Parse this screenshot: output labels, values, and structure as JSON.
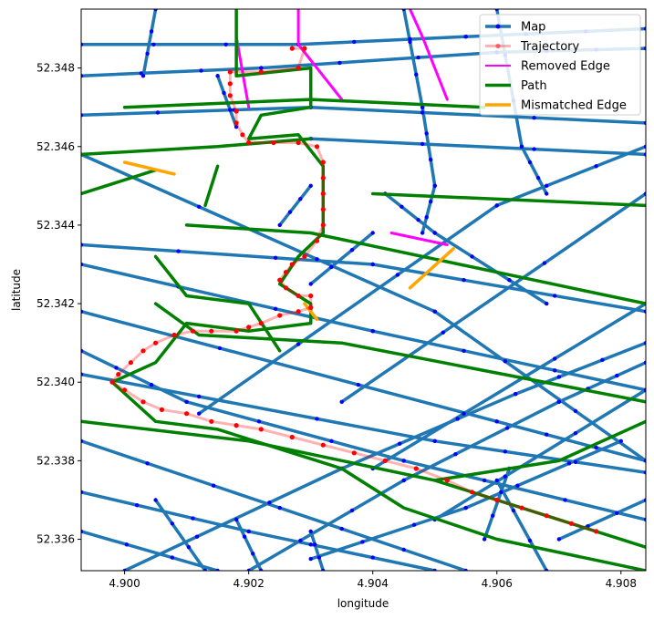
{
  "chart_data": {
    "type": "line",
    "xlabel": "longitude",
    "ylabel": "latitude",
    "xlim": [
      4.8993,
      4.9084
    ],
    "ylim": [
      52.3352,
      52.3495
    ],
    "x_ticks": [
      "4.900",
      "4.902",
      "4.904",
      "4.906",
      "4.908"
    ],
    "x_tick_values": [
      4.9,
      4.902,
      4.904,
      4.906,
      4.908
    ],
    "y_ticks": [
      "52.336",
      "52.338",
      "52.340",
      "52.342",
      "52.344",
      "52.346",
      "52.348"
    ],
    "y_tick_values": [
      52.336,
      52.338,
      52.34,
      52.342,
      52.344,
      52.346,
      52.348
    ],
    "grid": false,
    "legend_position": "top-right",
    "colors": {
      "map": "#1f77b4",
      "map_nodes": "#0000ff",
      "trajectory": "#ff0000",
      "removed": "#ff00ff",
      "path": "#008000",
      "mismatched": "#ffa500"
    },
    "legend": [
      {
        "label": "Map",
        "style": "map"
      },
      {
        "label": "Trajectory",
        "style": "trajectory"
      },
      {
        "label": "Removed Edge",
        "style": "removed"
      },
      {
        "label": "Path",
        "style": "path"
      },
      {
        "label": "Mismatched Edge",
        "style": "mismatched"
      }
    ],
    "map_edges": [
      [
        [
          4.8993,
          52.3486
        ],
        [
          4.9028,
          52.3486
        ],
        [
          4.9055,
          52.3488
        ],
        [
          4.9084,
          52.349
        ]
      ],
      [
        [
          4.8993,
          52.3478
        ],
        [
          4.9022,
          52.348
        ],
        [
          4.906,
          52.3484
        ],
        [
          4.9084,
          52.3485
        ]
      ],
      [
        [
          4.8993,
          52.3468
        ],
        [
          4.903,
          52.347
        ],
        [
          4.9084,
          52.3466
        ]
      ],
      [
        [
          4.903,
          52.3462
        ],
        [
          4.9084,
          52.3458
        ]
      ],
      [
        [
          4.8993,
          52.3435
        ],
        [
          4.904,
          52.343
        ],
        [
          4.9084,
          52.3418
        ]
      ],
      [
        [
          4.8993,
          52.3458
        ],
        [
          4.905,
          52.3418
        ],
        [
          4.9084,
          52.338
        ]
      ],
      [
        [
          4.8993,
          52.3408
        ],
        [
          4.901,
          52.3395
        ],
        [
          4.9045,
          52.338
        ],
        [
          4.9084,
          52.3365
        ]
      ],
      [
        [
          4.8993,
          52.3385
        ],
        [
          4.9025,
          52.3368
        ],
        [
          4.9055,
          52.3352
        ]
      ],
      [
        [
          4.8993,
          52.3372
        ],
        [
          4.902,
          52.3362
        ],
        [
          4.905,
          52.3352
        ]
      ],
      [
        [
          4.8993,
          52.3362
        ],
        [
          4.9015,
          52.3352
        ]
      ],
      [
        [
          4.8993,
          52.343
        ],
        [
          4.904,
          52.3413
        ],
        [
          4.9084,
          52.3398
        ]
      ],
      [
        [
          4.8993,
          52.3418
        ],
        [
          4.906,
          52.339
        ],
        [
          4.9084,
          52.338
        ]
      ],
      [
        [
          4.8993,
          52.3402
        ],
        [
          4.905,
          52.3385
        ],
        [
          4.9084,
          52.3377
        ]
      ],
      [
        [
          4.9,
          52.3352
        ],
        [
          4.9035,
          52.3378
        ],
        [
          4.9063,
          52.3397
        ],
        [
          4.9084,
          52.341
        ]
      ],
      [
        [
          4.902,
          52.3352
        ],
        [
          4.9045,
          52.3375
        ],
        [
          4.907,
          52.3395
        ],
        [
          4.9084,
          52.3405
        ]
      ],
      [
        [
          4.903,
          52.3355
        ],
        [
          4.9055,
          52.3368
        ],
        [
          4.908,
          52.3385
        ]
      ],
      [
        [
          4.9012,
          52.3392
        ],
        [
          4.906,
          52.3445
        ],
        [
          4.9084,
          52.346
        ]
      ],
      [
        [
          4.9035,
          52.3395
        ],
        [
          4.9084,
          52.3448
        ]
      ],
      [
        [
          4.904,
          52.3378
        ],
        [
          4.9084,
          52.342
        ]
      ],
      [
        [
          4.905,
          52.3365
        ],
        [
          4.9084,
          52.3398
        ]
      ],
      [
        [
          4.907,
          52.336
        ],
        [
          4.9084,
          52.337
        ]
      ],
      [
        [
          4.906,
          52.3495
        ],
        [
          4.9064,
          52.346
        ],
        [
          4.9068,
          52.3448
        ]
      ],
      [
        [
          4.9045,
          52.3495
        ],
        [
          4.9048,
          52.347
        ],
        [
          4.905,
          52.345
        ],
        [
          4.9048,
          52.3438
        ]
      ],
      [
        [
          4.9042,
          52.3448
        ],
        [
          4.905,
          52.3438
        ],
        [
          4.9068,
          52.342
        ]
      ],
      [
        [
          4.9025,
          52.344
        ],
        [
          4.903,
          52.345
        ]
      ],
      [
        [
          4.904,
          52.3438
        ],
        [
          4.903,
          52.3425
        ]
      ],
      [
        [
          4.9005,
          52.3495
        ],
        [
          4.9003,
          52.3478
        ]
      ],
      [
        [
          4.9015,
          52.3478
        ],
        [
          4.9018,
          52.3465
        ]
      ],
      [
        [
          4.9013,
          52.3352
        ],
        [
          4.9005,
          52.337
        ]
      ],
      [
        [
          4.9022,
          52.3352
        ],
        [
          4.9018,
          52.3365
        ]
      ],
      [
        [
          4.9032,
          52.3352
        ],
        [
          4.903,
          52.3362
        ]
      ],
      [
        [
          4.9062,
          52.3378
        ],
        [
          4.9058,
          52.336
        ]
      ],
      [
        [
          4.9068,
          52.3352
        ],
        [
          4.906,
          52.3375
        ]
      ]
    ],
    "removed_edges": [
      [
        [
          4.9018,
          52.3495
        ],
        [
          4.9018,
          52.3488
        ],
        [
          4.902,
          52.347
        ]
      ],
      [
        [
          4.9028,
          52.3495
        ],
        [
          4.9028,
          52.3486
        ],
        [
          4.9035,
          52.3472
        ]
      ],
      [
        [
          4.9046,
          52.3495
        ],
        [
          4.9048,
          52.3488
        ],
        [
          4.9052,
          52.3472
        ]
      ],
      [
        [
          4.9043,
          52.3438
        ],
        [
          4.9052,
          52.3435
        ]
      ]
    ],
    "path_edges": [
      [
        [
          4.9018,
          52.3495
        ],
        [
          4.9018,
          52.3478
        ],
        [
          4.903,
          52.348
        ],
        [
          4.903,
          52.347
        ],
        [
          4.9022,
          52.3468
        ],
        [
          4.902,
          52.3462
        ],
        [
          4.9028,
          52.3463
        ],
        [
          4.9032,
          52.3455
        ],
        [
          4.9032,
          52.3438
        ],
        [
          4.9028,
          52.3432
        ],
        [
          4.9025,
          52.3425
        ],
        [
          4.903,
          52.342
        ],
        [
          4.903,
          52.3415
        ],
        [
          4.902,
          52.3413
        ],
        [
          4.901,
          52.3415
        ],
        [
          4.9005,
          52.3405
        ],
        [
          4.8998,
          52.34
        ],
        [
          4.9005,
          52.339
        ],
        [
          4.9015,
          52.3388
        ],
        [
          4.9035,
          52.3378
        ],
        [
          4.9045,
          52.3368
        ],
        [
          4.906,
          52.336
        ],
        [
          4.9075,
          52.3355
        ],
        [
          4.9084,
          52.3352
        ]
      ],
      [
        [
          4.8993,
          52.3458
        ],
        [
          4.9015,
          52.346
        ],
        [
          4.903,
          52.3462
        ]
      ],
      [
        [
          4.9015,
          52.3455
        ],
        [
          4.9013,
          52.3445
        ]
      ],
      [
        [
          4.901,
          52.344
        ],
        [
          4.903,
          52.3438
        ],
        [
          4.9084,
          52.342
        ]
      ],
      [
        [
          4.9005,
          52.342
        ],
        [
          4.9012,
          52.3412
        ],
        [
          4.9035,
          52.341
        ],
        [
          4.9084,
          52.3395
        ]
      ],
      [
        [
          4.8993,
          52.339
        ],
        [
          4.902,
          52.3385
        ],
        [
          4.905,
          52.3375
        ],
        [
          4.9084,
          52.3358
        ]
      ],
      [
        [
          4.905,
          52.3375
        ],
        [
          4.907,
          52.338
        ],
        [
          4.9084,
          52.339
        ]
      ],
      [
        [
          4.9,
          52.347
        ],
        [
          4.903,
          52.3472
        ],
        [
          4.9058,
          52.347
        ]
      ],
      [
        [
          4.8993,
          52.3448
        ],
        [
          4.9005,
          52.3454
        ]
      ],
      [
        [
          4.9005,
          52.3432
        ],
        [
          4.901,
          52.3422
        ],
        [
          4.902,
          52.342
        ]
      ],
      [
        [
          4.902,
          52.342
        ],
        [
          4.9025,
          52.3408
        ]
      ],
      [
        [
          4.904,
          52.3448
        ],
        [
          4.9084,
          52.3445
        ]
      ]
    ],
    "mismatched_edges": [
      [
        [
          4.9,
          52.3456
        ],
        [
          4.9008,
          52.3453
        ]
      ],
      [
        [
          4.9046,
          52.3424
        ],
        [
          4.9053,
          52.3434
        ]
      ],
      [
        [
          4.9029,
          52.342
        ],
        [
          4.9031,
          52.3416
        ]
      ]
    ],
    "trajectory": [
      [
        4.9027,
        52.3485
      ],
      [
        4.9029,
        52.3485
      ],
      [
        4.9028,
        52.348
      ],
      [
        4.9022,
        52.3479
      ],
      [
        4.9017,
        52.3479
      ],
      [
        4.9017,
        52.3476
      ],
      [
        4.9017,
        52.3473
      ],
      [
        4.9018,
        52.3469
      ],
      [
        4.9018,
        52.3466
      ],
      [
        4.9019,
        52.3463
      ],
      [
        4.902,
        52.3461
      ],
      [
        4.9024,
        52.3461
      ],
      [
        4.9028,
        52.3461
      ],
      [
        4.9031,
        52.346
      ],
      [
        4.9032,
        52.3456
      ],
      [
        4.9032,
        52.3452
      ],
      [
        4.9032,
        52.3448
      ],
      [
        4.9032,
        52.3444
      ],
      [
        4.9032,
        52.344
      ],
      [
        4.9031,
        52.3436
      ],
      [
        4.9029,
        52.3432
      ],
      [
        4.9027,
        52.343
      ],
      [
        4.9026,
        52.3428
      ],
      [
        4.9025,
        52.3426
      ],
      [
        4.9026,
        52.3424
      ],
      [
        4.9028,
        52.3422
      ],
      [
        4.903,
        52.3422
      ],
      [
        4.903,
        52.3419
      ],
      [
        4.9028,
        52.3418
      ],
      [
        4.9025,
        52.3417
      ],
      [
        4.9022,
        52.3415
      ],
      [
        4.902,
        52.3414
      ],
      [
        4.9018,
        52.3413
      ],
      [
        4.9014,
        52.3413
      ],
      [
        4.9011,
        52.3413
      ],
      [
        4.9008,
        52.3412
      ],
      [
        4.9005,
        52.341
      ],
      [
        4.9003,
        52.3408
      ],
      [
        4.9001,
        52.3405
      ],
      [
        4.8999,
        52.3402
      ],
      [
        4.8998,
        52.34
      ],
      [
        4.9,
        52.3398
      ],
      [
        4.9003,
        52.3395
      ],
      [
        4.9006,
        52.3393
      ],
      [
        4.901,
        52.3392
      ],
      [
        4.9014,
        52.339
      ],
      [
        4.9018,
        52.3389
      ],
      [
        4.9022,
        52.3388
      ],
      [
        4.9027,
        52.3386
      ],
      [
        4.9032,
        52.3384
      ],
      [
        4.9037,
        52.3382
      ],
      [
        4.9042,
        52.338
      ],
      [
        4.9047,
        52.3378
      ],
      [
        4.9052,
        52.3375
      ],
      [
        4.9056,
        52.3372
      ],
      [
        4.906,
        52.337
      ],
      [
        4.9064,
        52.3368
      ],
      [
        4.9068,
        52.3366
      ],
      [
        4.9072,
        52.3364
      ],
      [
        4.9076,
        52.3362
      ]
    ]
  }
}
